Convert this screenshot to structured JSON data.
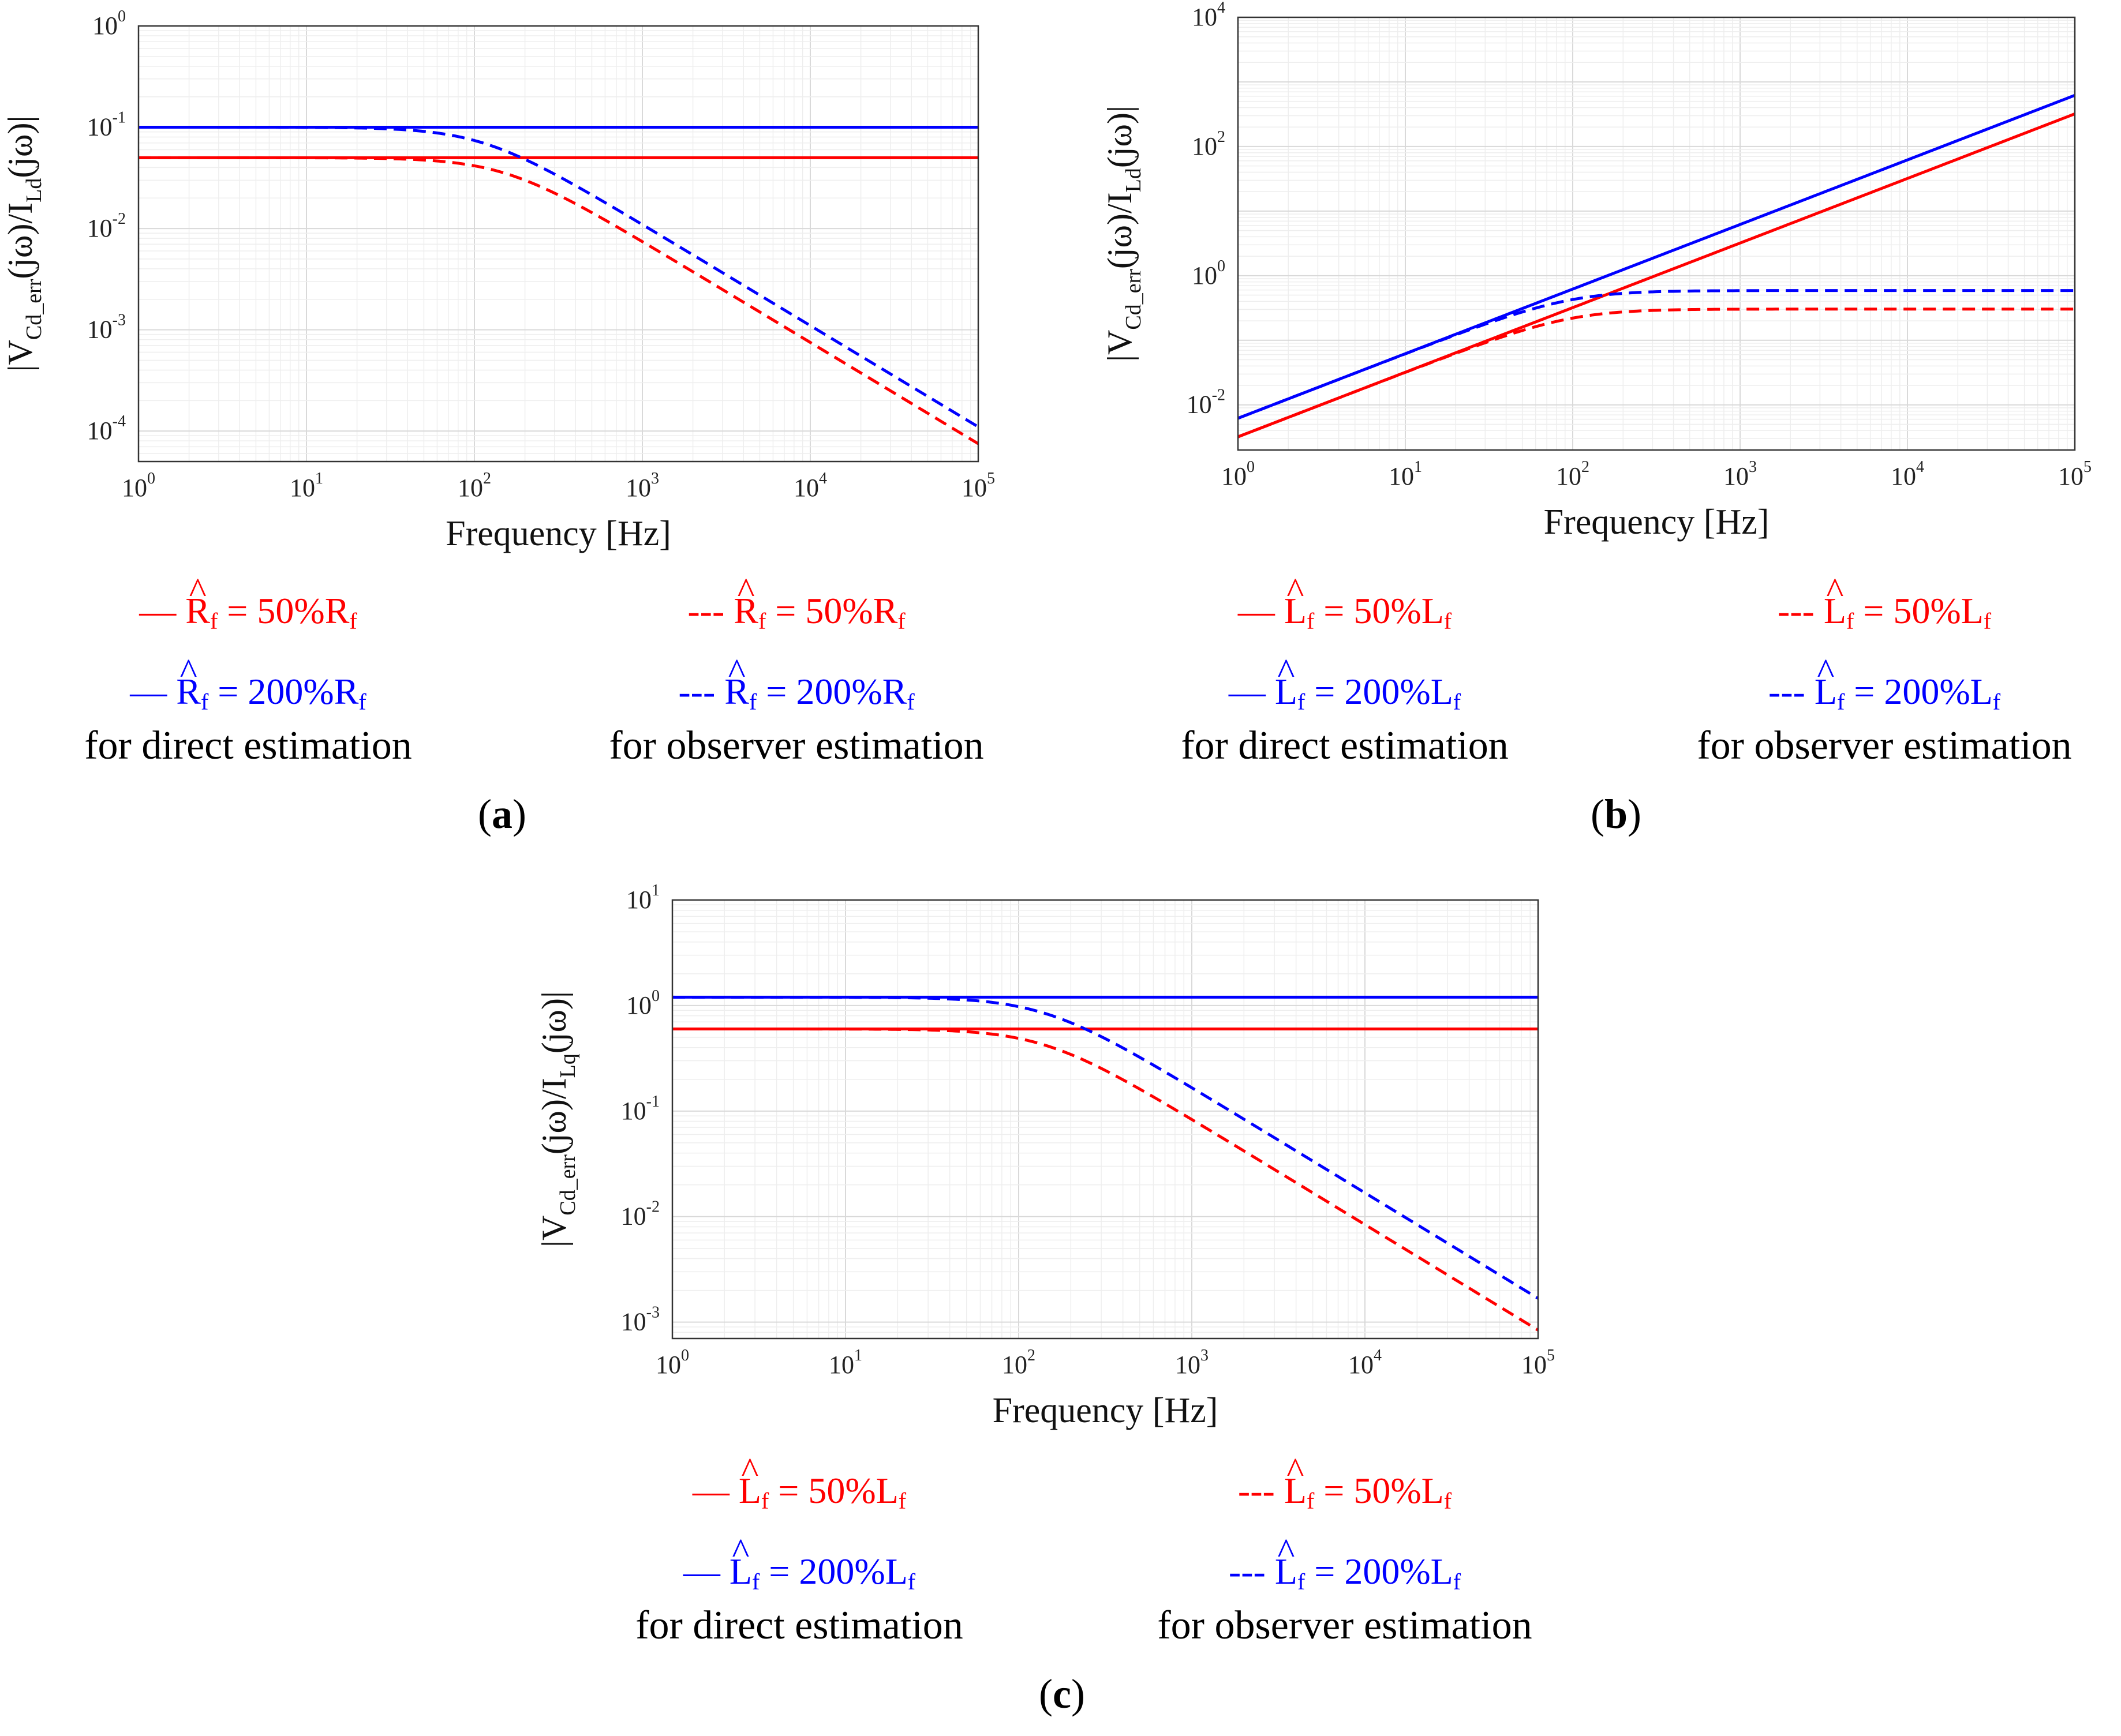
{
  "colors": {
    "red": "#ff0000",
    "blue": "#0000ff",
    "grid": "#e4e4e4",
    "axis": "#333333"
  },
  "chart_data": [
    {
      "id": "a",
      "type": "line",
      "panel_label": "a",
      "xlabel": "Frequency [Hz]",
      "ylabel": {
        "main": "V",
        "sub1": "Cd_err",
        "mid": "(jω)/I",
        "sub2": "Ld",
        "end": "(jω)"
      },
      "xscale": "log",
      "yscale": "log",
      "xlim": [
        1,
        100000
      ],
      "ylim": [
        5e-05,
        1
      ],
      "yticks": [
        0.0001,
        0.001,
        0.01,
        0.1,
        1
      ],
      "series": [
        {
          "name": "Rf=50%Rf direct",
          "color": "#ff0000",
          "dash": false,
          "model": "flat",
          "k": 0.05
        },
        {
          "name": "Rf=200%Rf direct",
          "color": "#0000ff",
          "dash": false,
          "model": "flat",
          "k": 0.1
        },
        {
          "name": "Rf=50%Rf observer",
          "color": "#ff0000",
          "dash": true,
          "model": "lowpass",
          "k": 0.05,
          "fc": 150
        },
        {
          "name": "Rf=200%Rf observer",
          "color": "#0000ff",
          "dash": true,
          "model": "lowpass",
          "k": 0.1,
          "fc": 110
        }
      ],
      "legend": {
        "direct": {
          "items": [
            {
              "color": "#ff0000",
              "marker": "—",
              "symbol": "R",
              "sub": "f",
              "value": " = 50%R",
              "value_sub": "f"
            },
            {
              "color": "#0000ff",
              "marker": "—",
              "symbol": "R",
              "sub": "f",
              "value": " = 200%R",
              "value_sub": "f"
            }
          ],
          "caption": "for direct estimation"
        },
        "observer": {
          "items": [
            {
              "color": "#ff0000",
              "marker": "---",
              "symbol": "R",
              "sub": "f",
              "value": " = 50%R",
              "value_sub": "f"
            },
            {
              "color": "#0000ff",
              "marker": "---",
              "symbol": "R",
              "sub": "f",
              "value": " = 200%R",
              "value_sub": "f"
            }
          ],
          "caption": "for observer estimation"
        }
      }
    },
    {
      "id": "b",
      "type": "line",
      "panel_label": "b",
      "xlabel": "Frequency [Hz]",
      "ylabel": {
        "main": "V",
        "sub1": "Cd_err",
        "mid": "(jω)/I",
        "sub2": "Ld",
        "end": "(jω)"
      },
      "xscale": "log",
      "yscale": "log",
      "xlim": [
        1,
        100000
      ],
      "ylim": [
        0.002,
        10000
      ],
      "yticks": [
        0.01,
        1,
        100,
        10000
      ],
      "series": [
        {
          "name": "Lf=50%Lf direct",
          "color": "#ff0000",
          "dash": false,
          "model": "ramp",
          "k": 0.0032
        },
        {
          "name": "Lf=200%Lf direct",
          "color": "#0000ff",
          "dash": false,
          "model": "ramp",
          "k": 0.0062
        },
        {
          "name": "Lf=50%Lf observer",
          "color": "#ff0000",
          "dash": true,
          "model": "highpass",
          "k": 0.0032,
          "fc": 95
        },
        {
          "name": "Lf=200%Lf observer",
          "color": "#0000ff",
          "dash": true,
          "model": "highpass",
          "k": 0.0062,
          "fc": 95
        }
      ],
      "legend": {
        "direct": {
          "items": [
            {
              "color": "#ff0000",
              "marker": "—",
              "symbol": "L",
              "sub": "f",
              "value": " = 50%L",
              "value_sub": "f"
            },
            {
              "color": "#0000ff",
              "marker": "—",
              "symbol": "L",
              "sub": "f",
              "value": " = 200%L",
              "value_sub": "f"
            }
          ],
          "caption": "for direct estimation"
        },
        "observer": {
          "items": [
            {
              "color": "#ff0000",
              "marker": "---",
              "symbol": "L",
              "sub": "f",
              "value": " = 50%L",
              "value_sub": "f"
            },
            {
              "color": "#0000ff",
              "marker": "---",
              "symbol": "L",
              "sub": "f",
              "value": " = 200%L",
              "value_sub": "f"
            }
          ],
          "caption": "for observer estimation"
        }
      }
    },
    {
      "id": "c",
      "type": "line",
      "panel_label": "c",
      "xlabel": "Frequency [Hz]",
      "ylabel": {
        "main": "V",
        "sub1": "Cd_err",
        "mid": "(jω)/I",
        "sub2": "Lq",
        "end": "(jω)"
      },
      "xscale": "log",
      "yscale": "log",
      "xlim": [
        1,
        100000
      ],
      "ylim": [
        0.0007,
        10
      ],
      "yticks": [
        0.001,
        0.01,
        0.1,
        1,
        10
      ],
      "series": [
        {
          "name": "Lf=50%Lf direct",
          "color": "#ff0000",
          "dash": false,
          "model": "flat",
          "k": 0.6
        },
        {
          "name": "Lf=200%Lf direct",
          "color": "#0000ff",
          "dash": false,
          "model": "flat",
          "k": 1.2
        },
        {
          "name": "Lf=50%Lf observer",
          "color": "#ff0000",
          "dash": true,
          "model": "lowpass",
          "k": 0.6,
          "fc": 140
        },
        {
          "name": "Lf=200%Lf observer",
          "color": "#0000ff",
          "dash": true,
          "model": "lowpass",
          "k": 1.2,
          "fc": 140
        }
      ],
      "legend": {
        "direct": {
          "items": [
            {
              "color": "#ff0000",
              "marker": "—",
              "symbol": "L",
              "sub": "f",
              "value": " = 50%L",
              "value_sub": "f"
            },
            {
              "color": "#0000ff",
              "marker": "—",
              "symbol": "L",
              "sub": "f",
              "value": " = 200%L",
              "value_sub": "f"
            }
          ],
          "caption": "for direct estimation"
        },
        "observer": {
          "items": [
            {
              "color": "#ff0000",
              "marker": "---",
              "symbol": "L",
              "sub": "f",
              "value": " = 50%L",
              "value_sub": "f"
            },
            {
              "color": "#0000ff",
              "marker": "---",
              "symbol": "L",
              "sub": "f",
              "value": " = 200%L",
              "value_sub": "f"
            }
          ],
          "caption": "for observer estimation"
        }
      }
    }
  ]
}
